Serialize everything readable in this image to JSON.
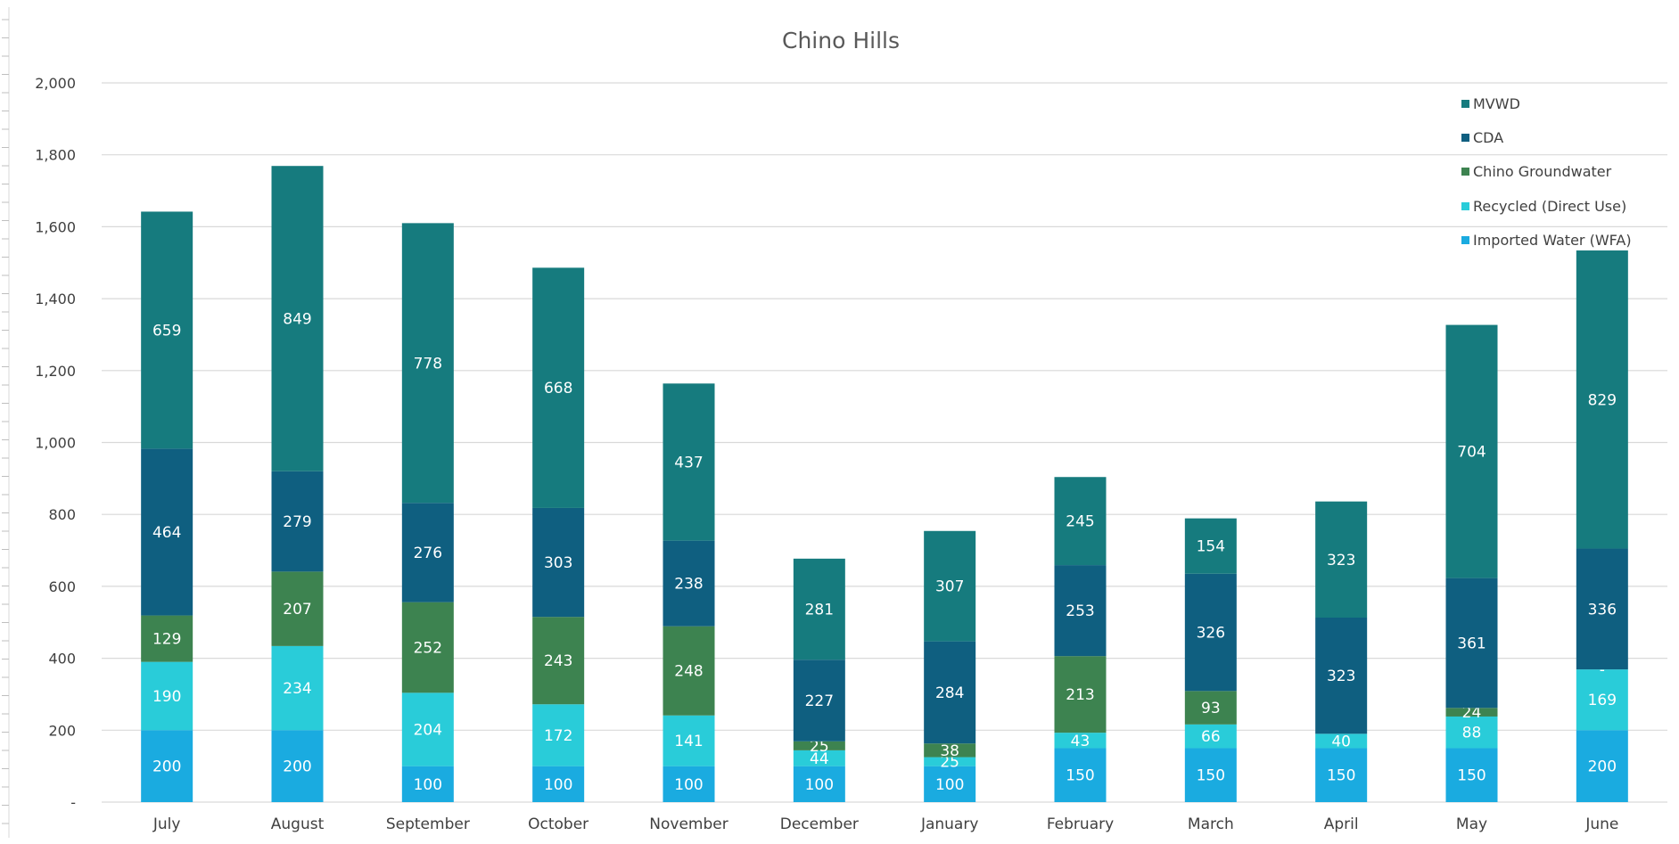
{
  "chart_data": {
    "type": "bar",
    "stacked": true,
    "title": "Chino Hills",
    "xlabel": "",
    "ylabel": "",
    "categories": [
      "July",
      "August",
      "September",
      "October",
      "November",
      "December",
      "January",
      "February",
      "March",
      "April",
      "May",
      "June"
    ],
    "series": [
      {
        "name": "Imported Water (WFA)",
        "color": "#1aabe0",
        "values": [
          200,
          200,
          100,
          100,
          100,
          100,
          100,
          150,
          150,
          150,
          150,
          200
        ],
        "labels": [
          "200",
          "200",
          "100",
          "100",
          "100",
          "100",
          "100",
          "150",
          "150",
          "150",
          "150",
          "200"
        ]
      },
      {
        "name": "Recycled (Direct Use)",
        "color": "#29ccd9",
        "values": [
          190,
          234,
          204,
          172,
          141,
          44,
          25,
          43,
          66,
          40,
          88,
          169
        ],
        "labels": [
          "190",
          "234",
          "204",
          "172",
          "141",
          "44",
          "25",
          "43",
          "66",
          "40",
          "88",
          "169"
        ]
      },
      {
        "name": "Chino Groundwater",
        "color": "#3d8350",
        "values": [
          129,
          207,
          252,
          243,
          248,
          25,
          38,
          213,
          93,
          0,
          24,
          0
        ],
        "labels": [
          "129",
          "207",
          "252",
          "243",
          "248",
          "25",
          "38",
          "213",
          "93",
          "",
          "24",
          "-"
        ]
      },
      {
        "name": "CDA",
        "color": "#0f5f80",
        "values": [
          464,
          279,
          276,
          303,
          238,
          227,
          284,
          253,
          326,
          323,
          361,
          336
        ],
        "labels": [
          "464",
          "279",
          "276",
          "303",
          "238",
          "227",
          "284",
          "253",
          "326",
          "323",
          "361",
          "336"
        ]
      },
      {
        "name": "MVWD",
        "color": "#167b7e",
        "values": [
          659,
          849,
          778,
          668,
          437,
          281,
          307,
          245,
          154,
          323,
          704,
          829
        ],
        "labels": [
          "659",
          "849",
          "778",
          "668",
          "437",
          "281",
          "307",
          "245",
          "154",
          "323",
          "704",
          "829"
        ]
      }
    ],
    "ylim": [
      0,
      2000
    ],
    "yticks": [
      0,
      200,
      400,
      600,
      800,
      1000,
      1200,
      1400,
      1600,
      1800,
      2000
    ],
    "ytick_labels": [
      "-",
      "200",
      "400",
      "600",
      "800",
      "1,000",
      "1,200",
      "1,400",
      "1,600",
      "1,800",
      "2,000"
    ],
    "grid": true,
    "legend_position": "top-right",
    "colors": {
      "gridline": "#d9d9d9",
      "axis_text": "#404040",
      "title_text": "#595959"
    }
  }
}
